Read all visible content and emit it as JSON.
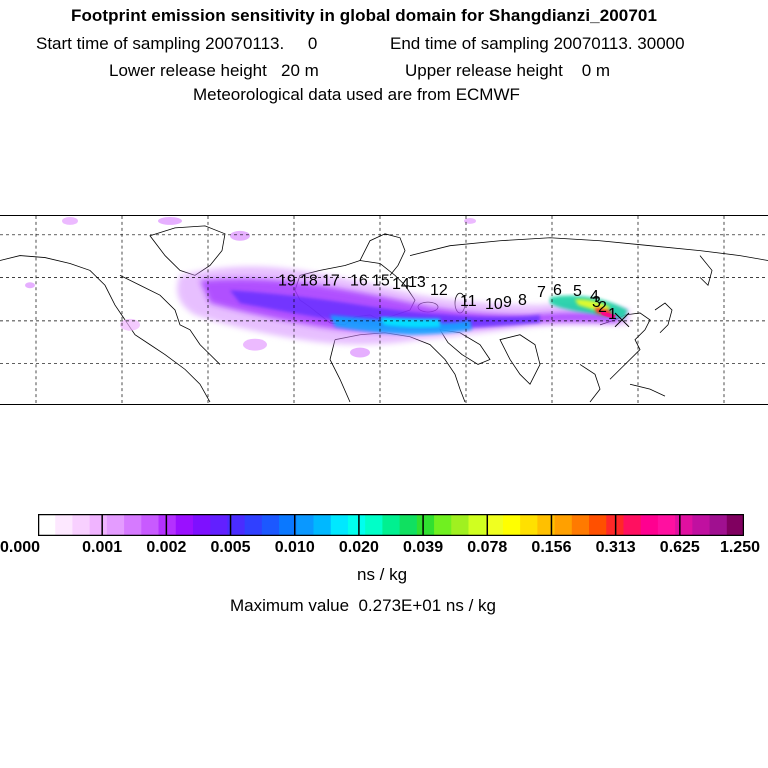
{
  "header": {
    "title": "Footprint emission sensitivity in global domain for Shangdianzi_200701",
    "start_label": "Start time of sampling 20070113.     0",
    "end_label": "End time of sampling 20070113. 30000",
    "lower_label": "Lower release height   20 m",
    "upper_label": "Upper release height    0 m",
    "met_label": "Meteorological data used are from ECMWF"
  },
  "map": {
    "track_labels": [
      "1",
      "2",
      "3",
      "4",
      "5",
      "6",
      "7",
      "8",
      "9",
      "10",
      "11",
      "12",
      "13",
      "14",
      "15",
      "16",
      "17",
      "18",
      "19"
    ]
  },
  "colorbar": {
    "colors": [
      "#ffffff",
      "#fde8ff",
      "#f8d0ff",
      "#f0b4ff",
      "#e49cff",
      "#d67aff",
      "#c85aff",
      "#b430ff",
      "#9a10ff",
      "#7e10ff",
      "#6220ff",
      "#4a2cff",
      "#3040ff",
      "#1c58ff",
      "#0a78ff",
      "#0a98ff",
      "#00b8ff",
      "#00e8ff",
      "#00ffee",
      "#00ffc8",
      "#00f090",
      "#10e060",
      "#30e030",
      "#70f020",
      "#a0f020",
      "#d0ff20",
      "#f0ff20",
      "#ffff00",
      "#ffe000",
      "#ffc000",
      "#ffa000",
      "#ff7a00",
      "#ff5000",
      "#ff2828",
      "#ff1060",
      "#ff0090",
      "#ff10a0",
      "#e010a0",
      "#c010a0",
      "#a01090",
      "#800060"
    ],
    "ticks": [
      "0.000",
      "0.001",
      "0.002",
      "0.005",
      "0.010",
      "0.020",
      "0.039",
      "0.078",
      "0.156",
      "0.313",
      "0.625",
      "1.250"
    ]
  },
  "footer": {
    "units": "ns / kg",
    "max_value": "Maximum value  0.273E+01 ns / kg"
  }
}
